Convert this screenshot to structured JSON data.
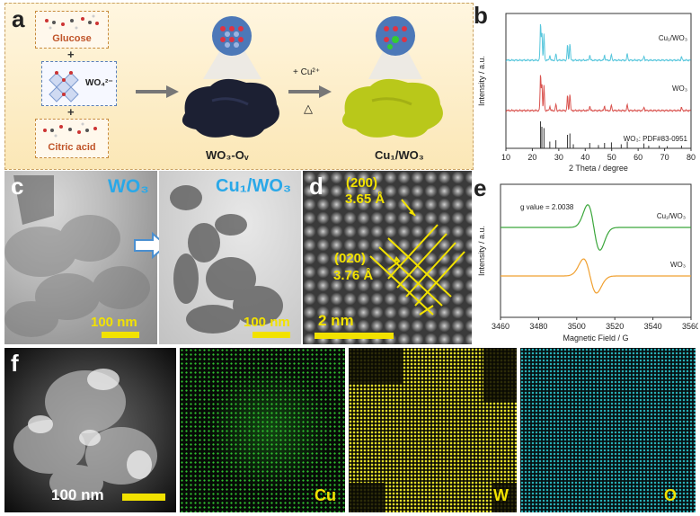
{
  "panels": {
    "a": "a",
    "b": "b",
    "c": "c",
    "d": "d",
    "e": "e",
    "f": "f"
  },
  "schematic": {
    "glucose": "Glucose",
    "wo4": "WO₄²⁻",
    "citric": "Citric acid",
    "plus": "+",
    "reagent_top": "+ Cu²⁺",
    "reagent_bottom": "△",
    "product1": "WO₃-Oᵥ",
    "product2": "Cu₁/WO₃"
  },
  "tem": {
    "c_left_label": "WO₃",
    "c_right_label": "Cu₁/WO₃",
    "c_left_scale": "100 nm",
    "c_right_scale": "100 nm",
    "d_plane1": "(200)",
    "d_spacing1": "3.65 Å",
    "d_plane2": "(020)",
    "d_spacing2": "3.76 Å",
    "d_scale": "2 nm"
  },
  "eds": {
    "scale": "100 nm",
    "cu": "Cu",
    "w": "W",
    "o": "O"
  },
  "colors": {
    "cu1": "#57c6dc",
    "wo3": "#d9534f",
    "ref": "#333333",
    "epr_cu": "#3aa63a",
    "epr_wo3": "#f0a030",
    "scale_yellow": "#f2e200",
    "label_blue": "#2aa8e8",
    "cu_map": "#33cc33",
    "w_map": "#e6e02a",
    "o_map": "#2ab8c0"
  },
  "chart_data": [
    {
      "type": "line",
      "panel": "b",
      "xlabel": "2 Theta / degree",
      "ylabel": "Intensity / a.u.",
      "xlim": [
        10,
        80
      ],
      "xticks": [
        10,
        20,
        30,
        40,
        50,
        60,
        70,
        80
      ],
      "series": [
        {
          "name": "Cu₁/WO₃",
          "peaks": [
            [
              23.1,
              0.85
            ],
            [
              23.6,
              0.65
            ],
            [
              24.4,
              0.6
            ],
            [
              26.6,
              0.12
            ],
            [
              28.9,
              0.15
            ],
            [
              33.3,
              0.35
            ],
            [
              34.2,
              0.4
            ],
            [
              41.7,
              0.12
            ],
            [
              47.3,
              0.12
            ],
            [
              49.9,
              0.13
            ],
            [
              55.9,
              0.15
            ],
            [
              62.2,
              0.1
            ],
            [
              76.4,
              0.08
            ]
          ]
        },
        {
          "name": "WO₃",
          "peaks": [
            [
              23.1,
              0.8
            ],
            [
              23.6,
              0.6
            ],
            [
              24.4,
              0.55
            ],
            [
              26.6,
              0.1
            ],
            [
              28.9,
              0.14
            ],
            [
              33.3,
              0.33
            ],
            [
              34.2,
              0.38
            ],
            [
              41.7,
              0.1
            ],
            [
              47.3,
              0.1
            ],
            [
              49.9,
              0.12
            ],
            [
              55.9,
              0.13
            ],
            [
              62.2,
              0.08
            ],
            [
              76.4,
              0.07
            ]
          ]
        },
        {
          "name": "WO₃: PDF#83-0951",
          "sticks": [
            [
              23.1,
              1.0
            ],
            [
              23.6,
              0.8
            ],
            [
              24.4,
              0.75
            ],
            [
              26.6,
              0.25
            ],
            [
              28.9,
              0.3
            ],
            [
              33.3,
              0.5
            ],
            [
              34.2,
              0.55
            ],
            [
              35.5,
              0.15
            ],
            [
              41.7,
              0.2
            ],
            [
              45.0,
              0.12
            ],
            [
              47.3,
              0.2
            ],
            [
              49.9,
              0.22
            ],
            [
              53.6,
              0.15
            ],
            [
              55.9,
              0.25
            ],
            [
              62.2,
              0.18
            ],
            [
              64.0,
              0.1
            ],
            [
              68.0,
              0.1
            ],
            [
              71.0,
              0.08
            ],
            [
              76.4,
              0.1
            ]
          ]
        }
      ]
    },
    {
      "type": "line",
      "panel": "e",
      "xlabel": "Magnetic Field / G",
      "ylabel": "Intensity / a.u.",
      "xlim": [
        3460,
        3560
      ],
      "xticks": [
        3460,
        3480,
        3500,
        3520,
        3540,
        3560
      ],
      "annotation": "g value = 2.0038",
      "series": [
        {
          "name": "Cu₁/WO₃",
          "center": 3509,
          "amplitude": 1.0,
          "width": 3.2
        },
        {
          "name": "WO₃",
          "center": 3507,
          "amplitude": 0.75,
          "width": 3.4
        }
      ]
    }
  ]
}
